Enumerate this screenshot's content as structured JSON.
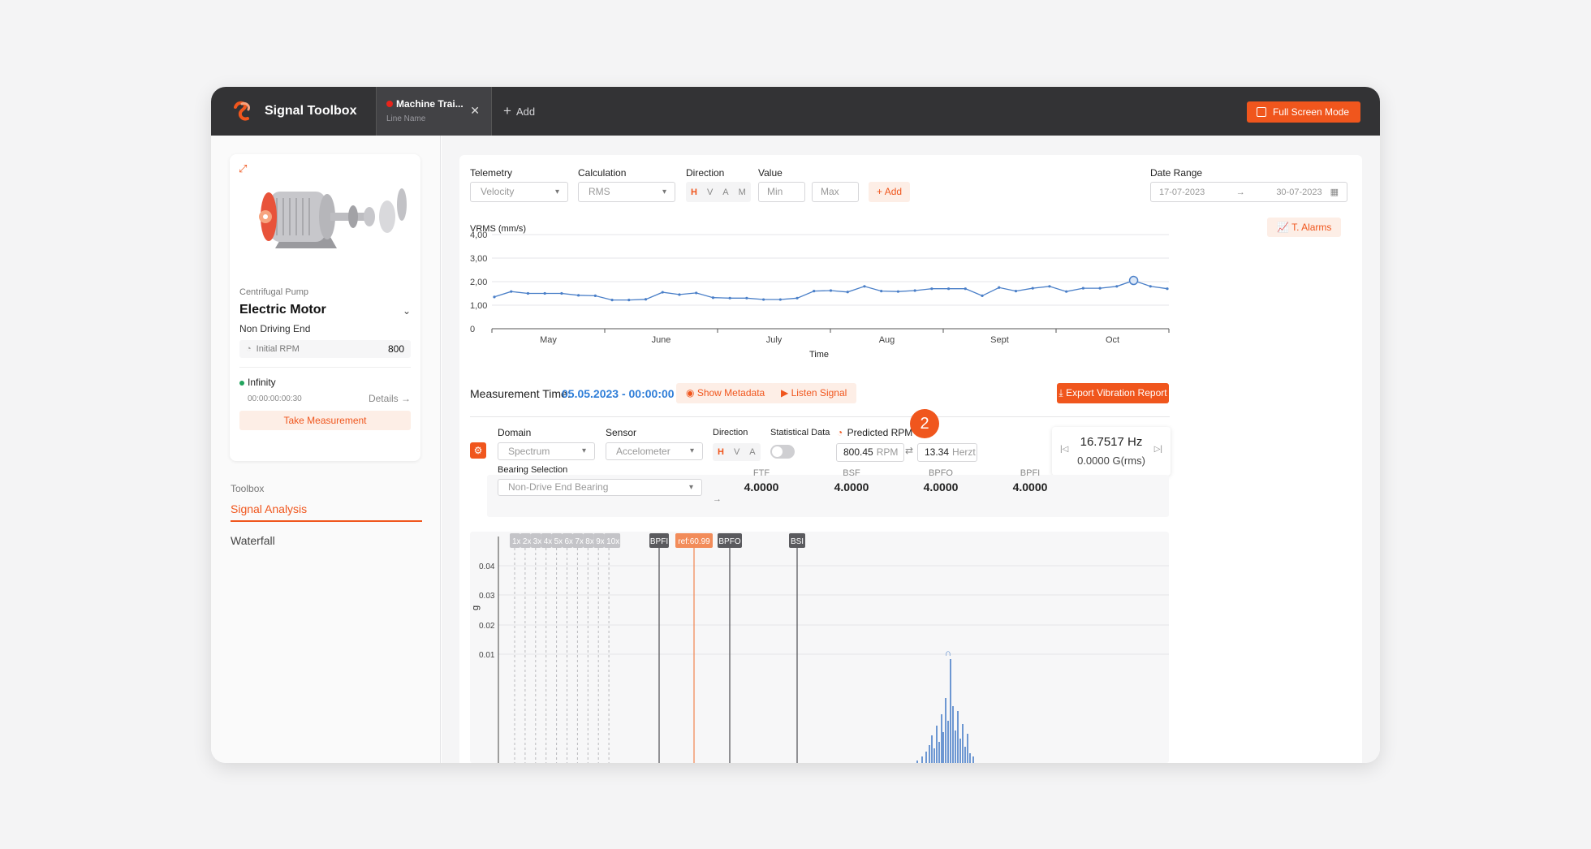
{
  "app": {
    "title": "Signal Toolbox",
    "fullscreen_label": "Full Screen Mode"
  },
  "tab": {
    "title": "Machine Trai...",
    "subtitle": "Line Name",
    "add_label": "Add"
  },
  "sidebar": {
    "asset_group": "Centrifugal Pump",
    "asset_name": "Electric Motor",
    "asset_point": "Non Driving End",
    "rpm_label": "Initial RPM",
    "rpm_value": "800",
    "status_label": "Infinity",
    "status_time": "00:00:00:00:30",
    "details_label": "Details",
    "take_measurement_label": "Take Measurement",
    "toolbox_label": "Toolbox",
    "nav": [
      {
        "label": "Signal Analysis",
        "active": true
      },
      {
        "label": "Waterfall",
        "active": false
      }
    ]
  },
  "filters": {
    "telemetry_label": "Telemetry",
    "telemetry_value": "Velocity",
    "calculation_label": "Calculation",
    "calculation_value": "RMS",
    "direction_label": "Direction",
    "direction_options": [
      "H",
      "V",
      "A",
      "M"
    ],
    "direction_selected": "H",
    "value_label": "Value",
    "min_placeholder": "Min",
    "max_placeholder": "Max",
    "add_label": "Add",
    "date_range_label": "Date Range",
    "date_from": "17-07-2023",
    "date_to": "30-07-2023",
    "alarms_label": "T. Alarms"
  },
  "trend_chart": {
    "ylabel": "VRMS (mm/s)",
    "xlabel": "Time",
    "y_ticks": [
      "4,00",
      "3,00",
      "2,00",
      "1,00",
      "0"
    ],
    "x_ticks": [
      "May",
      "June",
      "July",
      "Aug",
      "Sept",
      "Oct"
    ]
  },
  "measurement": {
    "time_label": "Measurement Time:",
    "time_value": "05.05.2023 - 00:00:00",
    "metadata_label": "Show Metadata",
    "listen_label": "Listen Signal",
    "export_label": "Export Vibration Report"
  },
  "spectrum_controls": {
    "domain_label": "Domain",
    "domain_value": "Spectrum",
    "sensor_label": "Sensor",
    "sensor_value": "Accelometer",
    "direction_label": "Direction",
    "direction_options": [
      "H",
      "V",
      "A"
    ],
    "direction_selected": "H",
    "statistical_label": "Statistical Data",
    "predicted_rpm_label": "Predicted RPM",
    "rpm_value": "800.45",
    "rpm_unit": "RPM",
    "hz_value": "13.34",
    "hz_unit": "Herzt",
    "step_badge": "2",
    "cursor_hz": "16.7517 Hz",
    "cursor_g": "0.0000 G(rms)",
    "bearing_label": "Bearing Selection",
    "bearing_value": "Non-Drive End Bearing",
    "bearing_freqs": [
      {
        "name": "FTF",
        "value": "4.0000"
      },
      {
        "name": "BSF",
        "value": "4.0000"
      },
      {
        "name": "BPFO",
        "value": "4.0000"
      },
      {
        "name": "BPFI",
        "value": "4.0000"
      }
    ]
  },
  "spectrum_chart": {
    "ylabel": "g",
    "y_ticks": [
      "0.04",
      "0.03",
      "0.02",
      "0.01"
    ],
    "harmonic_labels": [
      "1x",
      "2x",
      "3x",
      "4x",
      "5x",
      "6x",
      "7x",
      "8x",
      "9x",
      "10x"
    ],
    "markers": [
      "BPFI",
      "ref:60.99",
      "BPFO",
      "BSI"
    ]
  },
  "chart_data": {
    "type": "line",
    "title": "",
    "ylabel": "VRMS (mm/s)",
    "xlabel": "Time",
    "ylim": [
      0,
      4
    ],
    "x_ticks": [
      "May",
      "June",
      "July",
      "Aug",
      "Sept",
      "Oct"
    ],
    "series": [
      {
        "values": [
          1.35,
          1.58,
          1.5,
          1.5,
          1.5,
          1.42,
          1.4,
          1.22,
          1.22,
          1.25,
          1.55,
          1.45,
          1.52,
          1.32,
          1.3,
          1.3,
          1.24,
          1.24,
          1.3,
          1.6,
          1.62,
          1.56,
          1.8,
          1.6,
          1.58,
          1.62,
          1.7,
          1.7,
          1.7,
          1.4,
          1.75,
          1.6,
          1.72,
          1.8,
          1.58,
          1.72,
          1.72,
          1.8,
          2.05,
          1.8,
          1.7
        ]
      }
    ],
    "highlight_index": 38,
    "grid": true
  },
  "colors": {
    "accent": "#f0561d",
    "line": "#4a7fc8",
    "date_blue": "#2f7ed8",
    "topbar": "#333335"
  }
}
